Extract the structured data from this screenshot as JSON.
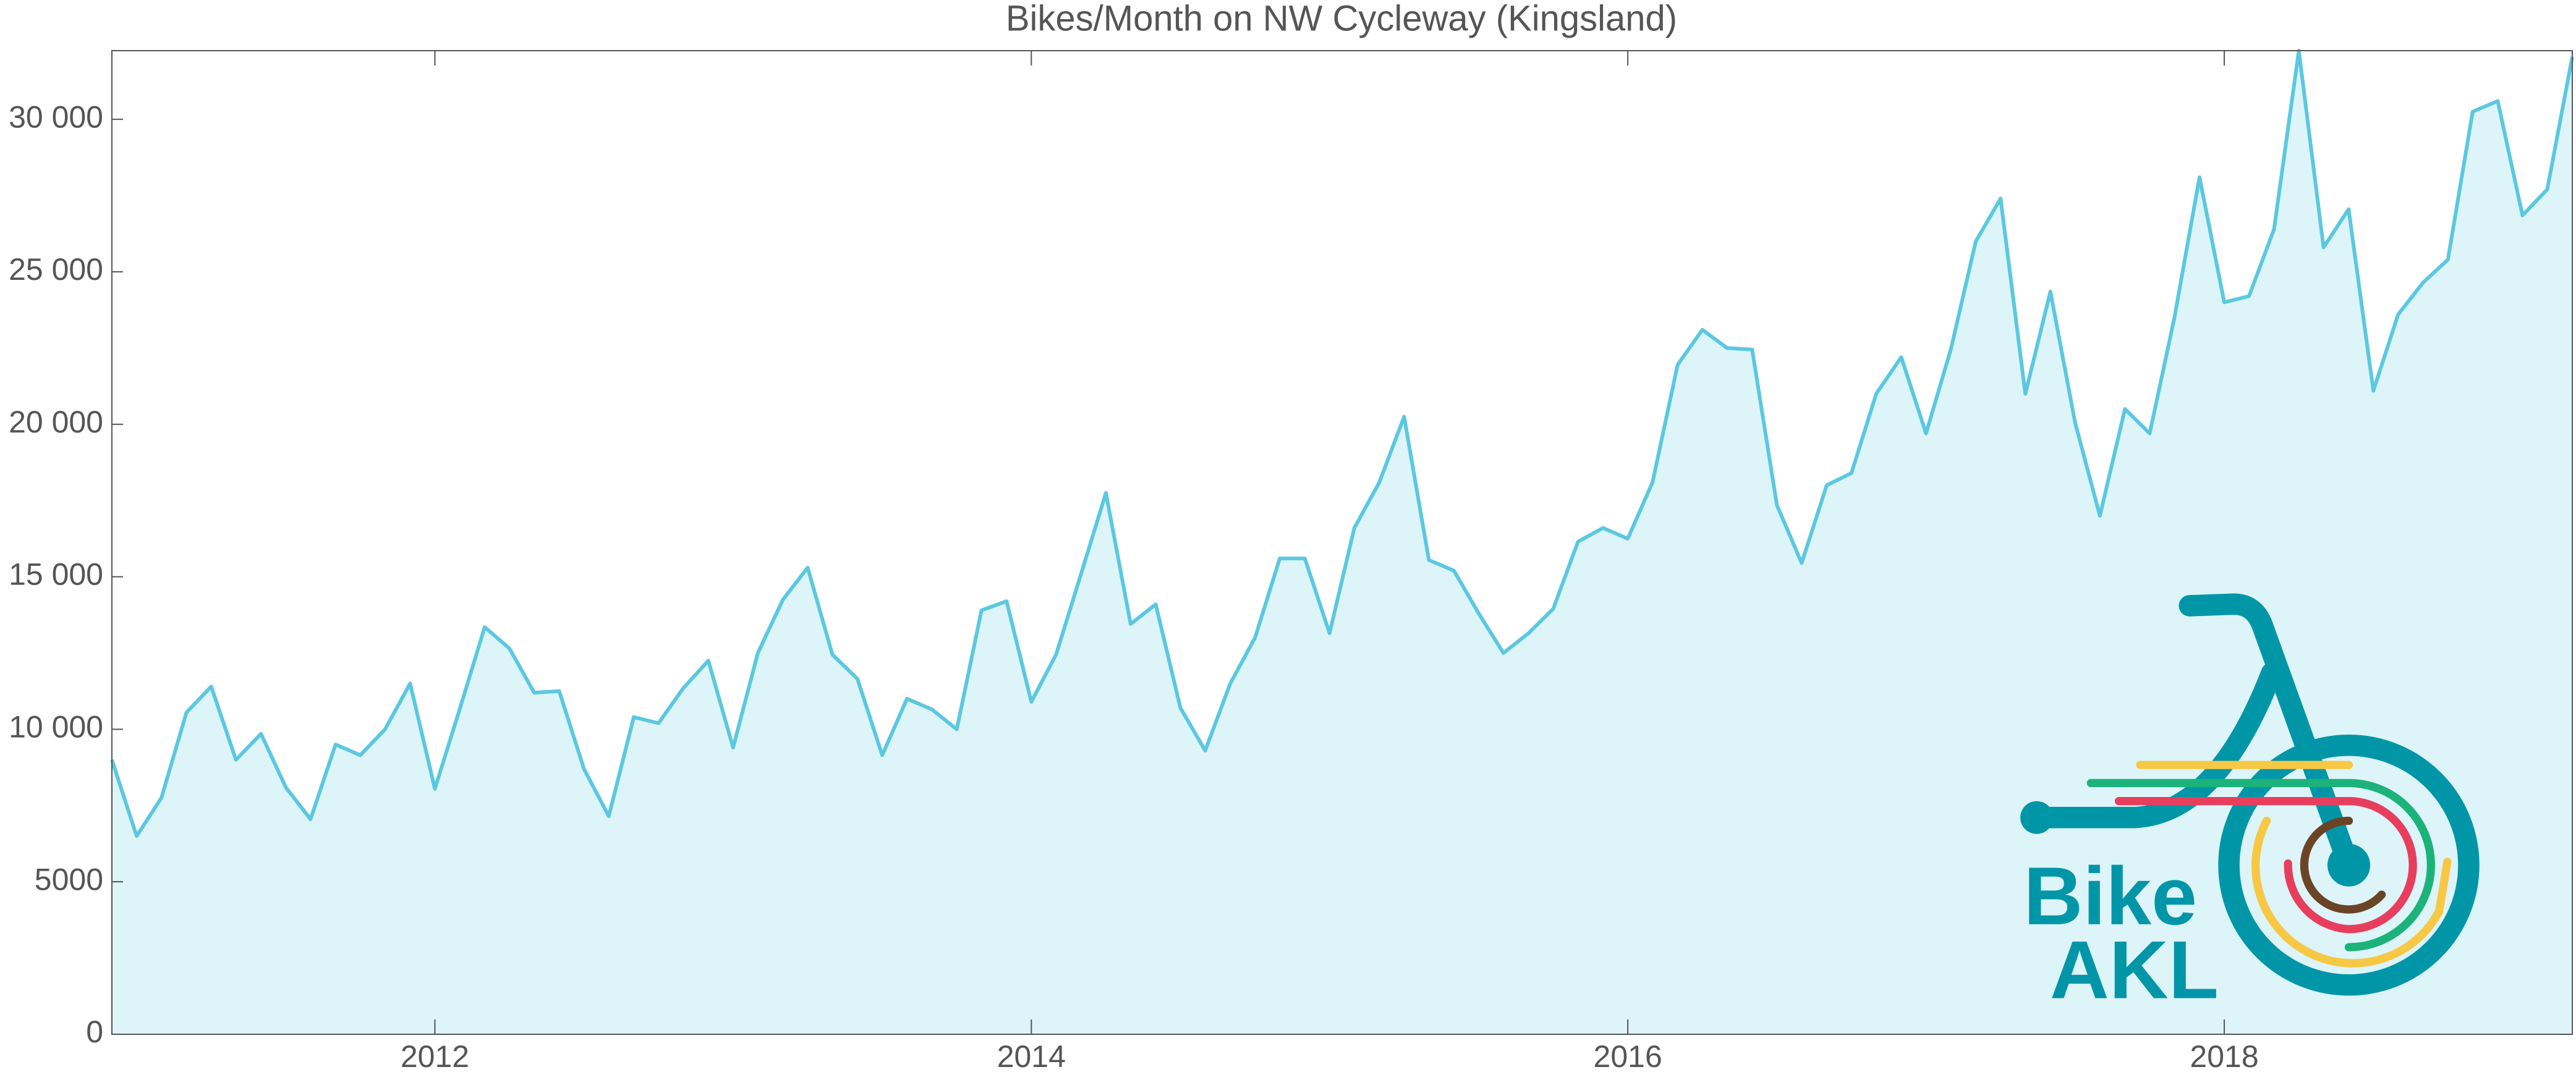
{
  "chart_data": {
    "type": "area",
    "title": "Bikes/Month on NW Cycleway (Kingsland)",
    "x": [
      2010.917,
      2011,
      2011.083,
      2011.167,
      2011.25,
      2011.333,
      2011.417,
      2011.5,
      2011.583,
      2011.667,
      2011.75,
      2011.833,
      2011.917,
      2012,
      2012.083,
      2012.167,
      2012.25,
      2012.333,
      2012.417,
      2012.5,
      2012.583,
      2012.667,
      2012.75,
      2012.833,
      2012.917,
      2013,
      2013.083,
      2013.167,
      2013.25,
      2013.333,
      2013.417,
      2013.5,
      2013.583,
      2013.667,
      2013.75,
      2013.833,
      2013.917,
      2014,
      2014.083,
      2014.167,
      2014.25,
      2014.333,
      2014.417,
      2014.5,
      2014.583,
      2014.667,
      2014.75,
      2014.833,
      2014.917,
      2015,
      2015.083,
      2015.167,
      2015.25,
      2015.333,
      2015.417,
      2015.5,
      2015.583,
      2015.667,
      2015.75,
      2015.833,
      2015.917,
      2016,
      2016.083,
      2016.167,
      2016.25,
      2016.333,
      2016.417,
      2016.5,
      2016.583,
      2016.667,
      2016.75,
      2016.833,
      2016.917,
      2017,
      2017.083,
      2017.167,
      2017.25,
      2017.333,
      2017.417,
      2017.5,
      2017.583,
      2017.667,
      2017.75,
      2017.833,
      2017.917,
      2018,
      2018.083,
      2018.167,
      2018.25,
      2018.333,
      2018.417,
      2018.5,
      2018.583,
      2018.667,
      2018.75,
      2018.833,
      2018.917,
      2019,
      2019.083,
      2019.167
    ],
    "series": [
      {
        "color": "#5bc8e0",
        "fill": "#ddf4f9",
        "values": [
          9000,
          6500,
          7750,
          10550,
          11400,
          9000,
          9850,
          8100,
          7050,
          9500,
          9150,
          10000,
          11500,
          8050,
          10650,
          13350,
          12650,
          11200,
          11250,
          8700,
          7150,
          10400,
          10200,
          11350,
          12250,
          9400,
          12500,
          14250,
          15300,
          12450,
          11650,
          9150,
          11000,
          10650,
          10000,
          13900,
          14200,
          10900,
          12450,
          15100,
          17750,
          13450,
          14100,
          10700,
          9300,
          11500,
          13000,
          15600,
          15600,
          13150,
          16600,
          18100,
          20250,
          15550,
          15200,
          13800,
          12500,
          13150,
          13950,
          16150,
          16600,
          16250,
          18100,
          21950,
          23100,
          22500,
          22450,
          17350,
          15450,
          18000,
          18400,
          21000,
          22200,
          19700,
          22450,
          26000,
          27400,
          21000,
          24350,
          20050,
          17000,
          20500,
          19700,
          23500,
          28100,
          24000,
          24200,
          26400,
          32250,
          25800,
          27050,
          21100,
          23600,
          24650,
          25400,
          30250,
          30600,
          26850,
          27700,
          32050
        ]
      }
    ],
    "xlim": [
      2010.917,
      2019.167
    ],
    "xticks": [
      2012,
      2014,
      2016,
      2018
    ],
    "ylim": [
      0,
      32250
    ],
    "yticks": [
      0,
      5000,
      {
        "value": 10000,
        "label": "10 000"
      },
      {
        "value": 15000,
        "label": "15 000"
      },
      {
        "value": 20000,
        "label": "20 000"
      },
      {
        "value": 25000,
        "label": "25 000"
      },
      {
        "value": 30000,
        "label": "30 000"
      }
    ],
    "logo": {
      "line1": "Bike",
      "line2": "AKL"
    }
  }
}
